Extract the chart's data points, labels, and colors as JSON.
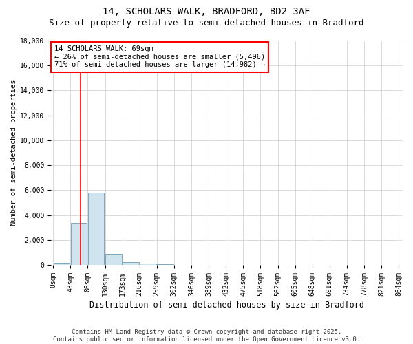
{
  "title1": "14, SCHOLARS WALK, BRADFORD, BD2 3AF",
  "title2": "Size of property relative to semi-detached houses in Bradford",
  "xlabel": "Distribution of semi-detached houses by size in Bradford",
  "ylabel": "Number of semi-detached properties",
  "annotation_text": "14 SCHOLARS WALK: 69sqm\n← 26% of semi-detached houses are smaller (5,496)\n71% of semi-detached houses are larger (14,982) →",
  "bin_edges": [
    0,
    43,
    86,
    130,
    173,
    216,
    259,
    302,
    346,
    389,
    432,
    475,
    518,
    562,
    605,
    648,
    691,
    734,
    778,
    821,
    864
  ],
  "bin_labels": [
    "0sqm",
    "43sqm",
    "86sqm",
    "130sqm",
    "173sqm",
    "216sqm",
    "259sqm",
    "302sqm",
    "346sqm",
    "389sqm",
    "432sqm",
    "475sqm",
    "518sqm",
    "562sqm",
    "605sqm",
    "648sqm",
    "691sqm",
    "734sqm",
    "778sqm",
    "821sqm",
    "864sqm"
  ],
  "counts": [
    190,
    3350,
    5800,
    900,
    200,
    110,
    55,
    15,
    0,
    0,
    0,
    0,
    0,
    0,
    0,
    0,
    0,
    0,
    0,
    0
  ],
  "bar_color": "#d0e4f0",
  "bar_edge_color": "#5588aa",
  "red_line_x": 69,
  "ylim": [
    0,
    18000
  ],
  "yticks": [
    0,
    2000,
    4000,
    6000,
    8000,
    10000,
    12000,
    14000,
    16000,
    18000
  ],
  "footer_line1": "Contains HM Land Registry data © Crown copyright and database right 2025.",
  "footer_line2": "Contains public sector information licensed under the Open Government Licence v3.0.",
  "background_color": "#ffffff",
  "plot_background": "#ffffff",
  "grid_color": "#cccccc",
  "title1_fontsize": 10,
  "title2_fontsize": 9,
  "annot_fontsize": 7.5,
  "ylabel_fontsize": 7.5,
  "xlabel_fontsize": 8.5,
  "footer_fontsize": 6.5,
  "tick_fontsize": 7
}
